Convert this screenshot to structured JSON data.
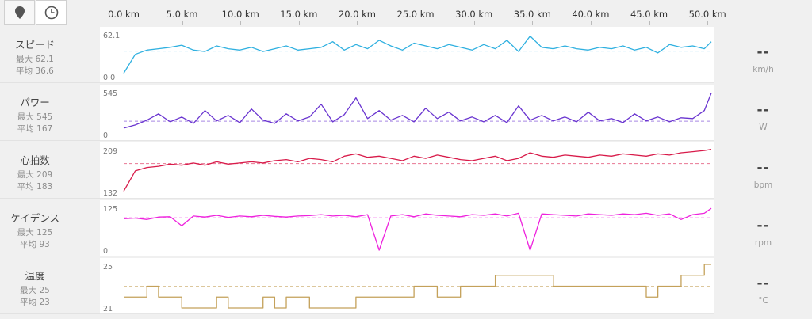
{
  "toolbar": {
    "buttons": [
      {
        "name": "map-pin",
        "active": true
      },
      {
        "name": "clock",
        "active": false
      }
    ]
  },
  "axis": {
    "ticks": [
      "0.0 km",
      "5.0 km",
      "10.0 km",
      "15.0 km",
      "20.0 km",
      "25.0 km",
      "30.0 km",
      "35.0 km",
      "40.0 km",
      "45.0 km",
      "50.0 km"
    ],
    "range_km": [
      0,
      50.6
    ]
  },
  "metrics": [
    {
      "key": "speed",
      "title": "スピード",
      "max_text": "最大 62.1",
      "avg_text": "平均 36.6",
      "y_top": "62.1",
      "y_bottom": "0.0",
      "current": "--",
      "unit": "km/h",
      "color": "#2fb0e0"
    },
    {
      "key": "power",
      "title": "パワー",
      "max_text": "最大 545",
      "avg_text": "平均 167",
      "y_top": "545",
      "y_bottom": "0",
      "current": "--",
      "unit": "W",
      "color": "#6a35d0"
    },
    {
      "key": "heartrate",
      "title": "心拍数",
      "max_text": "最大 209",
      "avg_text": "平均 183",
      "y_top": "209",
      "y_bottom": "132",
      "current": "--",
      "unit": "bpm",
      "color": "#d81b4a"
    },
    {
      "key": "cadence",
      "title": "ケイデンス",
      "max_text": "最大 125",
      "avg_text": "平均 93",
      "y_top": "125",
      "y_bottom": "0",
      "current": "--",
      "unit": "rpm",
      "color": "#ee22dd"
    },
    {
      "key": "temperature",
      "title": "温度",
      "max_text": "最大 25",
      "avg_text": "平均 23",
      "y_top": "25",
      "y_bottom": "21",
      "current": "--",
      "unit": "°C",
      "color": "#c4a15a"
    }
  ],
  "chart_data": [
    {
      "type": "line",
      "title": "スピード",
      "ylabel": "km/h",
      "ylim": [
        0,
        62.1
      ],
      "average": 36.6,
      "x": [
        0,
        1,
        2,
        3,
        4,
        5,
        6,
        7,
        8,
        9,
        10,
        11,
        12,
        13,
        14,
        15,
        16,
        17,
        18,
        19,
        20,
        21,
        22,
        23,
        24,
        25,
        26,
        27,
        28,
        29,
        30,
        31,
        32,
        33,
        34,
        35,
        36,
        37,
        38,
        39,
        40,
        41,
        42,
        43,
        44,
        45,
        46,
        47,
        48,
        49,
        50,
        50.6
      ],
      "values": [
        5,
        32,
        38,
        40,
        42,
        45,
        38,
        36,
        44,
        40,
        38,
        42,
        36,
        40,
        44,
        38,
        40,
        42,
        50,
        38,
        46,
        40,
        52,
        44,
        38,
        48,
        44,
        40,
        46,
        42,
        38,
        46,
        40,
        52,
        36,
        58,
        42,
        40,
        44,
        40,
        38,
        42,
        40,
        44,
        38,
        42,
        34,
        46,
        42,
        44,
        40,
        50
      ]
    },
    {
      "type": "line",
      "title": "パワー",
      "ylabel": "W",
      "ylim": [
        0,
        545
      ],
      "average": 167,
      "x": [
        0,
        1,
        2,
        3,
        4,
        5,
        6,
        7,
        8,
        9,
        10,
        11,
        12,
        13,
        14,
        15,
        16,
        17,
        18,
        19,
        20,
        21,
        22,
        23,
        24,
        25,
        26,
        27,
        28,
        29,
        30,
        31,
        32,
        33,
        34,
        35,
        36,
        37,
        38,
        39,
        40,
        41,
        42,
        43,
        44,
        45,
        46,
        47,
        48,
        49,
        50,
        50.6
      ],
      "values": [
        80,
        120,
        180,
        260,
        160,
        220,
        140,
        300,
        170,
        240,
        150,
        320,
        180,
        140,
        260,
        170,
        220,
        380,
        160,
        250,
        460,
        200,
        300,
        180,
        240,
        160,
        330,
        200,
        280,
        170,
        220,
        160,
        240,
        150,
        360,
        180,
        240,
        170,
        220,
        160,
        280,
        170,
        200,
        150,
        260,
        170,
        220,
        160,
        210,
        200,
        300,
        520
      ]
    },
    {
      "type": "line",
      "title": "心拍数",
      "ylabel": "bpm",
      "ylim": [
        132,
        209
      ],
      "average": 183,
      "x": [
        0,
        1,
        2,
        3,
        4,
        5,
        6,
        7,
        8,
        9,
        10,
        11,
        12,
        13,
        14,
        15,
        16,
        17,
        18,
        19,
        20,
        21,
        22,
        23,
        24,
        25,
        26,
        27,
        28,
        29,
        30,
        31,
        32,
        33,
        34,
        35,
        36,
        37,
        38,
        39,
        40,
        41,
        42,
        43,
        44,
        45,
        46,
        47,
        48,
        49,
        50,
        50.6
      ],
      "values": [
        134,
        170,
        176,
        178,
        182,
        180,
        184,
        180,
        186,
        182,
        184,
        186,
        184,
        188,
        190,
        186,
        192,
        190,
        186,
        196,
        200,
        194,
        196,
        192,
        188,
        196,
        192,
        198,
        194,
        190,
        188,
        192,
        196,
        188,
        192,
        202,
        196,
        194,
        198,
        196,
        194,
        198,
        196,
        200,
        198,
        196,
        200,
        198,
        202,
        204,
        206,
        208
      ]
    },
    {
      "type": "line",
      "title": "ケイデンス",
      "ylabel": "rpm",
      "ylim": [
        0,
        125
      ],
      "average": 93,
      "x": [
        0,
        1,
        2,
        3,
        4,
        5,
        6,
        7,
        8,
        9,
        10,
        11,
        12,
        13,
        14,
        15,
        16,
        17,
        18,
        19,
        20,
        21,
        22,
        23,
        24,
        25,
        26,
        27,
        28,
        29,
        30,
        31,
        32,
        33,
        34,
        35,
        36,
        37,
        38,
        39,
        40,
        41,
        42,
        43,
        44,
        45,
        46,
        47,
        48,
        49,
        50,
        50.6
      ],
      "values": [
        90,
        92,
        88,
        95,
        96,
        70,
        98,
        95,
        100,
        94,
        98,
        96,
        100,
        97,
        95,
        98,
        99,
        102,
        98,
        100,
        96,
        102,
        0,
        98,
        102,
        96,
        104,
        100,
        98,
        96,
        102,
        100,
        104,
        98,
        106,
        0,
        104,
        102,
        100,
        98,
        104,
        102,
        100,
        104,
        102,
        106,
        100,
        104,
        88,
        102,
        106,
        120
      ]
    },
    {
      "type": "line",
      "title": "温度",
      "ylabel": "°C",
      "ylim": [
        21,
        25
      ],
      "average": 23,
      "x": [
        0,
        1,
        2,
        3,
        4,
        5,
        6,
        7,
        8,
        9,
        10,
        11,
        12,
        13,
        14,
        15,
        16,
        17,
        18,
        19,
        20,
        21,
        22,
        23,
        24,
        25,
        26,
        27,
        28,
        29,
        30,
        31,
        32,
        33,
        34,
        35,
        36,
        37,
        38,
        39,
        40,
        41,
        42,
        43,
        44,
        45,
        46,
        47,
        48,
        49,
        50,
        50.6
      ],
      "values": [
        22,
        22,
        23,
        22,
        22,
        21,
        21,
        21,
        22,
        21,
        21,
        21,
        22,
        21,
        22,
        22,
        21,
        21,
        21,
        21,
        22,
        22,
        22,
        22,
        22,
        23,
        23,
        22,
        22,
        23,
        23,
        23,
        24,
        24,
        24,
        24,
        24,
        23,
        23,
        23,
        23,
        23,
        23,
        23,
        23,
        22,
        23,
        23,
        24,
        24,
        25,
        25
      ]
    }
  ]
}
